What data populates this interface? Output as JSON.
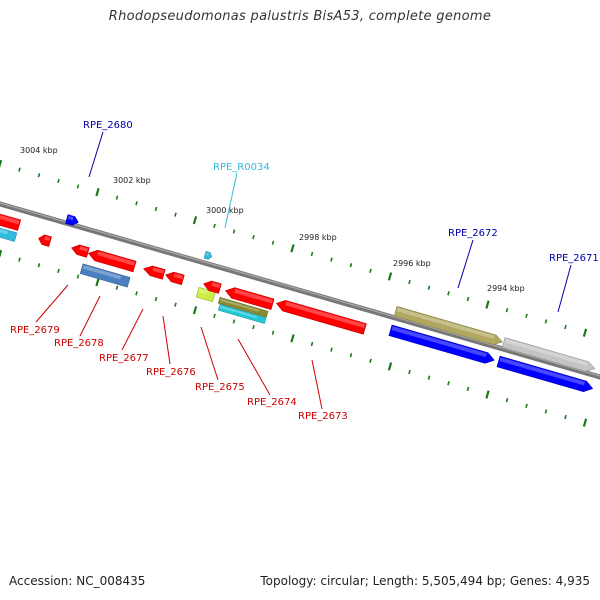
{
  "title": "Rhodopseudomonas palustris BisA53, complete genome",
  "accession_label": "Accession: NC_008435",
  "summary_label": "Topology: circular; Length: 5,505,494 bp; Genes: 4,935",
  "colors": {
    "backbone": "#777777",
    "tick": "#1a7a1a",
    "forward_gene": "#0000ff",
    "reverse_gene": "#ff0000",
    "rna": "#33bbdd",
    "reverse_label": "#cc0000",
    "forward_label": "#0000aa",
    "rna_label": "#33bbdd"
  },
  "scale_labels": [
    "3004 kbp",
    "3002 kbp",
    "3000 kbp",
    "2998 kbp",
    "2996 kbp",
    "2994 kbp"
  ],
  "gene_labels": {
    "top": [
      "RPE_2680",
      "RPE_R0034",
      "RPE_2672",
      "RPE_2671"
    ],
    "bottom": [
      "RPE_2679",
      "RPE_2678",
      "RPE_2677",
      "RPE_2676",
      "RPE_2675",
      "RPE_2674",
      "RPE_2673"
    ]
  }
}
